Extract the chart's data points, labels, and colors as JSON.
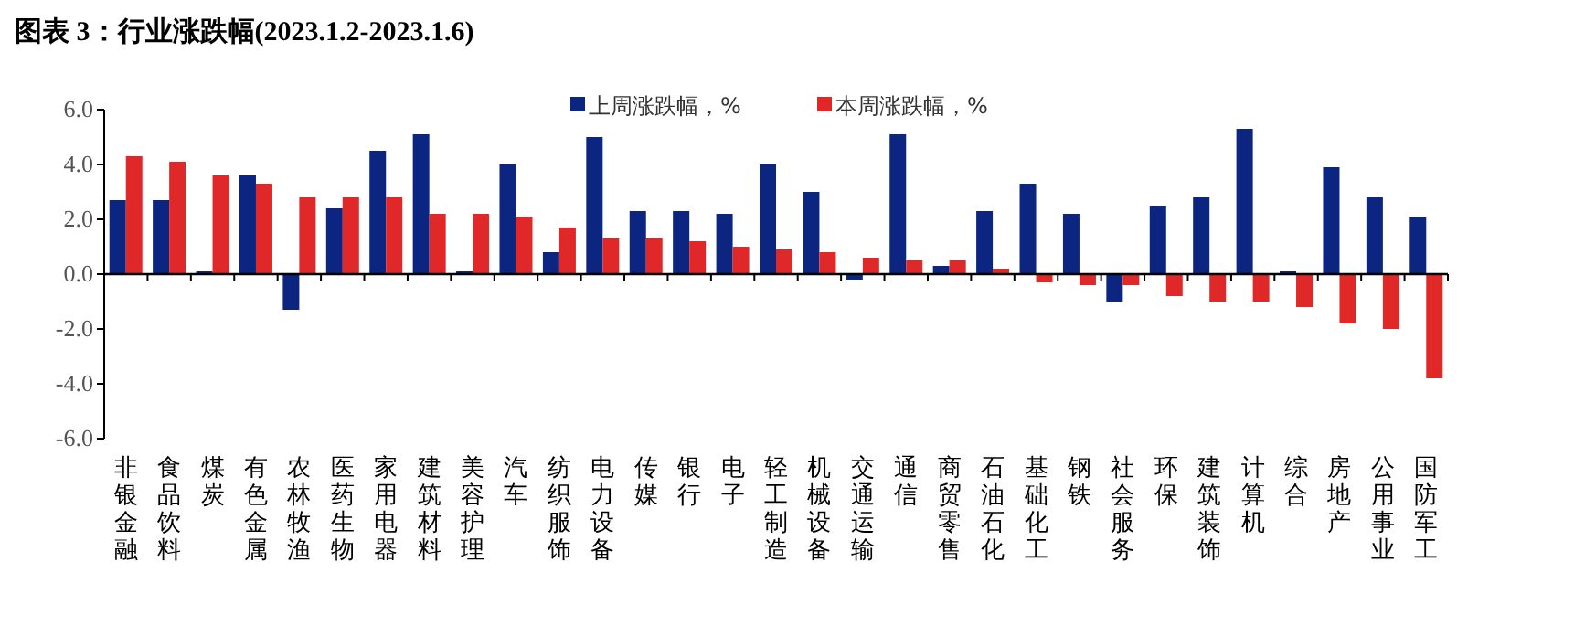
{
  "chart_data": {
    "type": "bar",
    "title": "图表 3：行业涨跌幅(2023.1.2-2023.1.6)",
    "categories": [
      "非银金融",
      "食品饮料",
      "煤炭",
      "有色金属",
      "农林牧渔",
      "医药生物",
      "家用电器",
      "建筑材料",
      "美容护理",
      "汽车",
      "纺织服饰",
      "电力设备",
      "传媒",
      "银行",
      "电子",
      "轻工制造",
      "机械设备",
      "交通运输",
      "通信",
      "商贸零售",
      "石油石化",
      "基础化工",
      "钢铁",
      "社会服务",
      "环保",
      "建筑装饰",
      "计算机",
      "综合",
      "房地产",
      "公用事业",
      "国防军工"
    ],
    "series": [
      {
        "name": "上周涨跌幅，%",
        "color": "#0b2580",
        "values": [
          2.7,
          2.7,
          0.1,
          3.6,
          -1.3,
          2.4,
          4.5,
          5.1,
          0.1,
          4.0,
          0.8,
          5.0,
          2.3,
          2.3,
          2.2,
          4.0,
          3.0,
          -0.2,
          5.1,
          0.3,
          2.3,
          3.3,
          2.2,
          -1.0,
          2.5,
          2.8,
          5.3,
          0.1,
          3.9,
          2.8,
          2.1
        ]
      },
      {
        "name": "本周涨跌幅，%",
        "color": "#e02828",
        "values": [
          4.3,
          4.1,
          3.6,
          3.3,
          2.8,
          2.8,
          2.8,
          2.2,
          2.2,
          2.1,
          1.7,
          1.3,
          1.3,
          1.2,
          1.0,
          0.9,
          0.8,
          0.6,
          0.5,
          0.5,
          0.2,
          -0.3,
          -0.4,
          -0.4,
          -0.8,
          -1.0,
          -1.0,
          -1.2,
          -1.8,
          -2.0,
          -3.8
        ]
      }
    ],
    "ylim": [
      -6,
      6
    ],
    "yticks": [
      {
        "value": -6,
        "label": "-6.0"
      },
      {
        "value": -4,
        "label": "-4.0"
      },
      {
        "value": -2,
        "label": "-2.0"
      },
      {
        "value": 0,
        "label": "0.0"
      },
      {
        "value": 2,
        "label": "2.0"
      },
      {
        "value": 4,
        "label": "4.0"
      },
      {
        "value": 6,
        "label": "6.0"
      }
    ],
    "legend": "top"
  }
}
